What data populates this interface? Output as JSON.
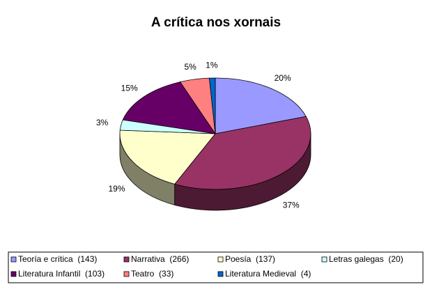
{
  "chart_data": {
    "type": "pie3d",
    "title": "A crítica nos xornais",
    "categories": [
      "Teoría e crítica  (143)",
      "Narrativa  (266)",
      "Poesía  (137)",
      "Letras galegas  (20)",
      "Literatura Infantil  (103)",
      "Teatro  (33)",
      "Literatura Medieval  (4)"
    ],
    "values": [
      20,
      37,
      19,
      3,
      15,
      5,
      1
    ],
    "value_labels": [
      "20%",
      "37%",
      "19%",
      "3%",
      "15%",
      "5%",
      "1%"
    ],
    "colors": [
      "#9999ff",
      "#993366",
      "#ffffcc",
      "#ccffff",
      "#660066",
      "#ff8080",
      "#0066cc"
    ],
    "legend": "bottom"
  }
}
